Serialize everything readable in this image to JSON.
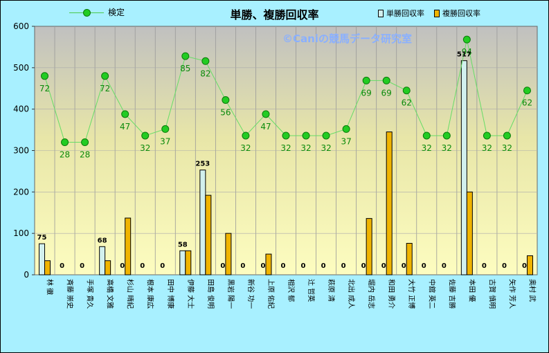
{
  "chart_data": {
    "type": "bar",
    "title": "単勝、複勝回収率",
    "watermark": "©Caniの競馬データ研究室",
    "categories": [
      "林 徹",
      "斉藤 崇史",
      "手塚 貴久",
      "高橋 文雅",
      "杉山 晴紀",
      "根本 康広",
      "田中 博康",
      "伊藤 大士",
      "田島 俊明",
      "黒岩 陽一",
      "新谷 功一",
      "上原 佑紀",
      "相沢 郁",
      "辻 哲英",
      "萩原 清",
      "北出 成人",
      "堀内 岳志",
      "和田 勇介",
      "大竹 正博",
      "中舘 英二",
      "佐藤 吉勝",
      "本田 優",
      "古賀 慎明",
      "矢作 芳人",
      "奥村 武"
    ],
    "series": [
      {
        "name": "単勝回収率",
        "kind": "bar",
        "color": "#d2f0ee",
        "values": [
          75,
          0,
          0,
          68,
          0,
          0,
          0,
          58,
          253,
          0,
          0,
          0,
          0,
          0,
          0,
          0,
          0,
          0,
          0,
          0,
          0,
          517,
          0,
          0,
          0
        ]
      },
      {
        "name": "複勝回収率",
        "kind": "bar",
        "color": "#f0b400",
        "values": [
          34,
          0,
          0,
          34,
          137,
          0,
          0,
          58,
          192,
          100,
          0,
          50,
          0,
          0,
          0,
          0,
          136,
          345,
          76,
          0,
          0,
          200,
          0,
          0,
          46
        ]
      },
      {
        "name": "検定",
        "kind": "line",
        "color": "#22cc22",
        "values": [
          72,
          28,
          28,
          72,
          47,
          32,
          37,
          85,
          82,
          56,
          32,
          47,
          32,
          32,
          32,
          37,
          69,
          69,
          62,
          32,
          32,
          94,
          32,
          32,
          62
        ],
        "y_positions": [
          480,
          320,
          320,
          480,
          388,
          336,
          352,
          528,
          516,
          422,
          336,
          388,
          336,
          336,
          336,
          352,
          469,
          469,
          445,
          336,
          336,
          568,
          336,
          336,
          445
        ]
      }
    ],
    "bar_labels_shown": [
      75,
      0,
      0,
      68,
      0,
      0,
      0,
      58,
      253,
      0,
      0,
      0,
      0,
      0,
      0,
      0,
      0,
      0,
      0,
      0,
      0,
      517,
      0,
      0,
      0
    ],
    "ylim": [
      0,
      600
    ],
    "yticks": [
      0,
      100,
      200,
      300,
      400,
      500,
      600
    ],
    "grid": true,
    "legend": {
      "line_position": "top-left",
      "bars_position": "top-right"
    }
  }
}
